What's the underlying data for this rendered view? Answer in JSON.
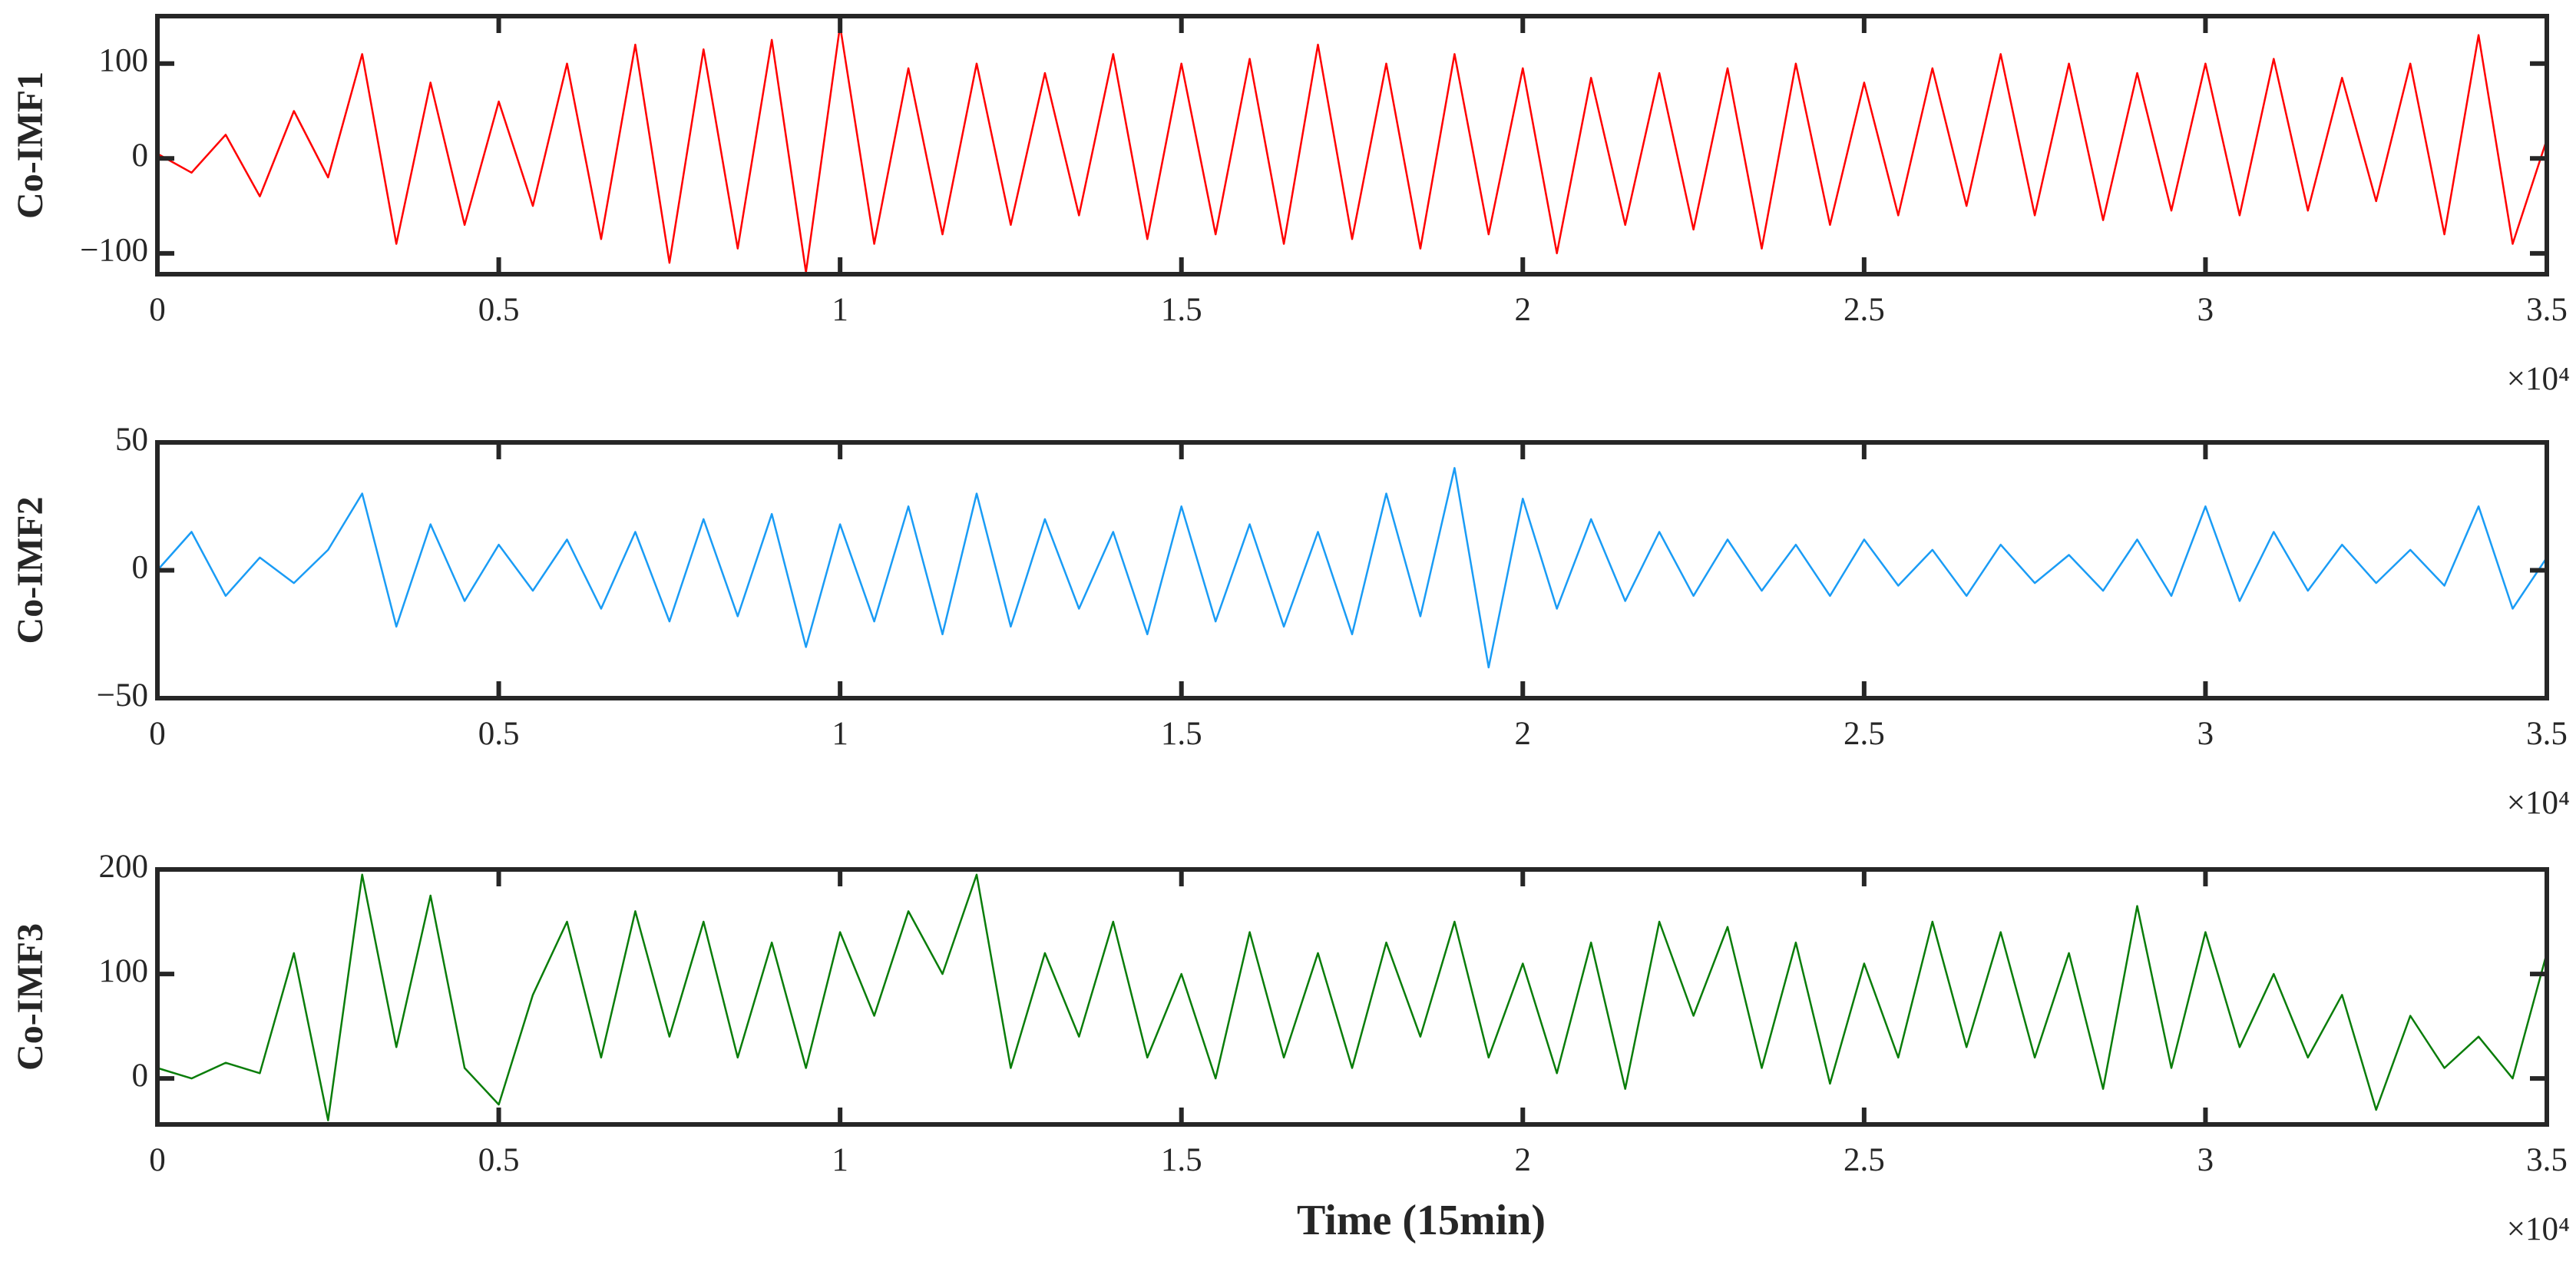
{
  "chart_data": [
    {
      "type": "line",
      "ylabel": "Co-IMF1",
      "color": "#ff0000",
      "x": [
        0,
        500,
        1000,
        1500,
        2000,
        2500,
        3000,
        3500,
        4000,
        4500,
        5000,
        5500,
        6000,
        6500,
        7000,
        7500,
        8000,
        8500,
        9000,
        9500,
        10000,
        10500,
        11000,
        11500,
        12000,
        12500,
        13000,
        13500,
        14000,
        14500,
        15000,
        15500,
        16000,
        16500,
        17000,
        17500,
        18000,
        18500,
        19000,
        19500,
        20000,
        20500,
        21000,
        21500,
        22000,
        22500,
        23000,
        23500,
        24000,
        24500,
        25000,
        25500,
        26000,
        26500,
        27000,
        27500,
        28000,
        28500,
        29000,
        29500,
        30000,
        30500,
        31000,
        31500,
        32000,
        32500,
        33000,
        33500,
        34000,
        34500,
        35000
      ],
      "values": [
        5,
        -15,
        25,
        -40,
        50,
        -20,
        110,
        -90,
        80,
        -70,
        60,
        -50,
        100,
        -85,
        120,
        -110,
        115,
        -95,
        125,
        -120,
        140,
        -90,
        95,
        -80,
        100,
        -70,
        90,
        -60,
        110,
        -85,
        100,
        -80,
        105,
        -90,
        120,
        -85,
        100,
        -95,
        110,
        -80,
        95,
        -100,
        85,
        -70,
        90,
        -75,
        95,
        -95,
        100,
        -70,
        80,
        -60,
        95,
        -50,
        110,
        -60,
        100,
        -65,
        90,
        -55,
        100,
        -60,
        105,
        -55,
        85,
        -45,
        100,
        -80,
        130,
        -90,
        20
      ],
      "xlim": [
        0,
        35000
      ],
      "xticks": [
        0,
        {
          "value": 5000,
          "label": "0.5"
        },
        {
          "value": 10000,
          "label": "1"
        },
        {
          "value": 15000,
          "label": "1.5"
        },
        {
          "value": 20000,
          "label": "2"
        },
        {
          "value": 25000,
          "label": "2.5"
        },
        {
          "value": 30000,
          "label": "3"
        },
        {
          "value": 35000,
          "label": "3.5"
        }
      ],
      "x_multiplier": "×10⁴",
      "ylim": [
        -122,
        150
      ],
      "yticks": [
        {
          "value": -100,
          "label": "−100"
        },
        0,
        100
      ]
    },
    {
      "type": "line",
      "ylabel": "Co-IMF2",
      "color": "#1a9cf5",
      "x": [
        0,
        500,
        1000,
        1500,
        2000,
        2500,
        3000,
        3500,
        4000,
        4500,
        5000,
        5500,
        6000,
        6500,
        7000,
        7500,
        8000,
        8500,
        9000,
        9500,
        10000,
        10500,
        11000,
        11500,
        12000,
        12500,
        13000,
        13500,
        14000,
        14500,
        15000,
        15500,
        16000,
        16500,
        17000,
        17500,
        18000,
        18500,
        19000,
        19500,
        20000,
        20500,
        21000,
        21500,
        22000,
        22500,
        23000,
        23500,
        24000,
        24500,
        25000,
        25500,
        26000,
        26500,
        27000,
        27500,
        28000,
        28500,
        29000,
        29500,
        30000,
        30500,
        31000,
        31500,
        32000,
        32500,
        33000,
        33500,
        34000,
        34500,
        35000
      ],
      "values": [
        0,
        15,
        -10,
        5,
        -5,
        8,
        30,
        -22,
        18,
        -12,
        10,
        -8,
        12,
        -15,
        15,
        -20,
        20,
        -18,
        22,
        -30,
        18,
        -20,
        25,
        -25,
        30,
        -22,
        20,
        -15,
        15,
        -25,
        25,
        -20,
        18,
        -22,
        15,
        -25,
        30,
        -18,
        40,
        -38,
        28,
        -15,
        20,
        -12,
        15,
        -10,
        12,
        -8,
        10,
        -10,
        12,
        -6,
        8,
        -10,
        10,
        -5,
        6,
        -8,
        12,
        -10,
        25,
        -12,
        15,
        -8,
        10,
        -5,
        8,
        -6,
        25,
        -15,
        5
      ],
      "xlim": [
        0,
        35000
      ],
      "xticks": [
        0,
        {
          "value": 5000,
          "label": "0.5"
        },
        {
          "value": 10000,
          "label": "1"
        },
        {
          "value": 15000,
          "label": "1.5"
        },
        {
          "value": 20000,
          "label": "2"
        },
        {
          "value": 25000,
          "label": "2.5"
        },
        {
          "value": 30000,
          "label": "3"
        },
        {
          "value": 35000,
          "label": "3.5"
        }
      ],
      "x_multiplier": "×10⁴",
      "ylim": [
        -50,
        50
      ],
      "yticks": [
        {
          "value": -50,
          "label": "−50"
        },
        0,
        50
      ]
    },
    {
      "type": "line",
      "ylabel": "Co-IMF3",
      "xlabel": "Time (15min)",
      "color": "#0a7d0a",
      "x": [
        0,
        500,
        1000,
        1500,
        2000,
        2500,
        3000,
        3500,
        4000,
        4500,
        5000,
        5500,
        6000,
        6500,
        7000,
        7500,
        8000,
        8500,
        9000,
        9500,
        10000,
        10500,
        11000,
        11500,
        12000,
        12500,
        13000,
        13500,
        14000,
        14500,
        15000,
        15500,
        16000,
        16500,
        17000,
        17500,
        18000,
        18500,
        19000,
        19500,
        20000,
        20500,
        21000,
        21500,
        22000,
        22500,
        23000,
        23500,
        24000,
        24500,
        25000,
        25500,
        26000,
        26500,
        27000,
        27500,
        28000,
        28500,
        29000,
        29500,
        30000,
        30500,
        31000,
        31500,
        32000,
        32500,
        33000,
        33500,
        34000,
        34500,
        35000
      ],
      "values": [
        10,
        0,
        15,
        5,
        120,
        -40,
        195,
        30,
        175,
        10,
        -25,
        80,
        150,
        20,
        160,
        40,
        150,
        20,
        130,
        10,
        140,
        60,
        160,
        100,
        195,
        10,
        120,
        40,
        150,
        20,
        100,
        0,
        140,
        20,
        120,
        10,
        130,
        40,
        150,
        20,
        110,
        5,
        130,
        -10,
        150,
        60,
        145,
        10,
        130,
        -5,
        110,
        20,
        150,
        30,
        140,
        20,
        120,
        -10,
        165,
        10,
        140,
        30,
        100,
        20,
        80,
        -30,
        60,
        10,
        40,
        0,
        120
      ],
      "xlim": [
        0,
        35000
      ],
      "xticks": [
        0,
        {
          "value": 5000,
          "label": "0.5"
        },
        {
          "value": 10000,
          "label": "1"
        },
        {
          "value": 15000,
          "label": "1.5"
        },
        {
          "value": 20000,
          "label": "2"
        },
        {
          "value": 25000,
          "label": "2.5"
        },
        {
          "value": 30000,
          "label": "3"
        },
        {
          "value": 35000,
          "label": "3.5"
        }
      ],
      "x_multiplier": "×10⁴",
      "ylim": [
        -44,
        200
      ],
      "yticks": [
        0,
        100,
        200
      ]
    }
  ]
}
